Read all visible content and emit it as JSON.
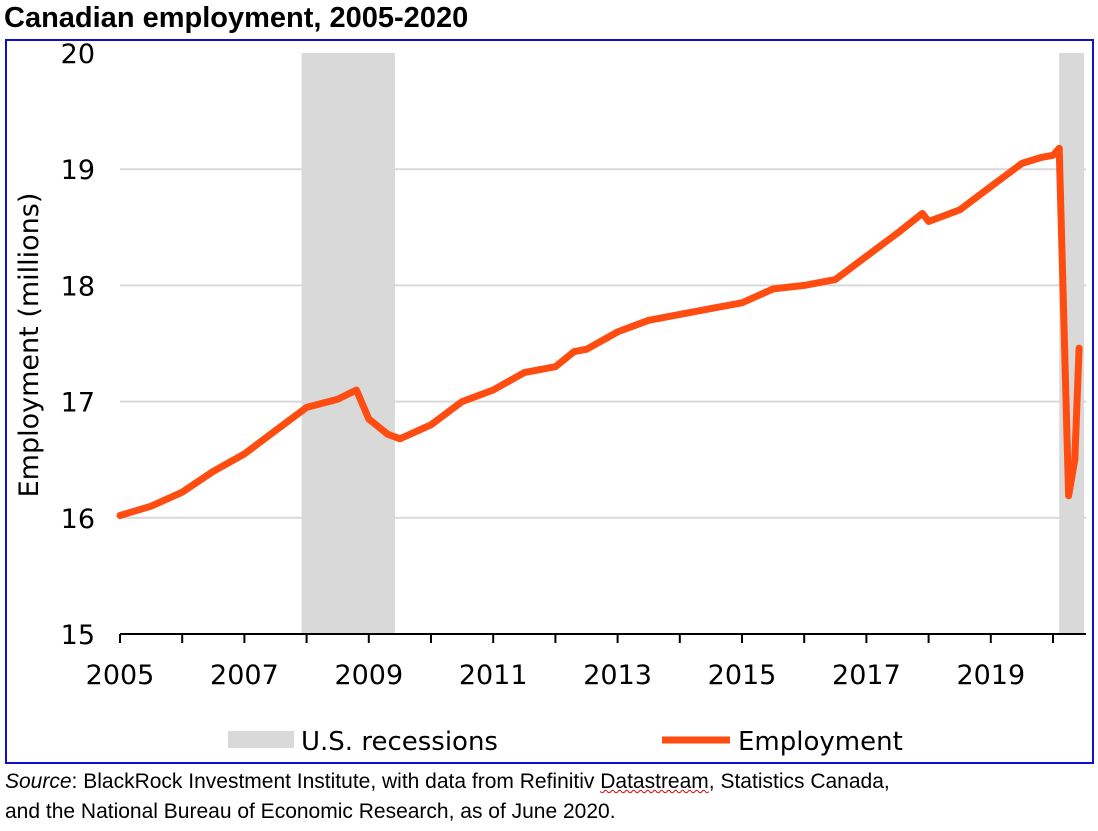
{
  "title": "Canadian employment, 2005-2020",
  "source": {
    "label": "Source",
    "text": ": BlackRock Investment Institute, with data from Refinitiv ",
    "underlined": "Datastream",
    "text2": ", Statistics Canada,",
    "line2": "and the National Bureau of Economic Research, as of June 2020."
  },
  "colors": {
    "line": "#ff4d12",
    "recession": "#d9d9d9",
    "grid": "#d9d9d9",
    "frame": "#1010d0"
  },
  "chart_data": {
    "type": "line",
    "title": "Canadian employment, 2005-2020",
    "ylabel": "Employment (millions)",
    "xlabel": "",
    "ylim": [
      15,
      20
    ],
    "xlim": [
      2005,
      2020.5
    ],
    "yticks": [
      "15",
      "16",
      "17",
      "18",
      "19",
      "20"
    ],
    "xticks": [
      "2005",
      "2007",
      "2009",
      "2011",
      "2013",
      "2015",
      "2017",
      "2019"
    ],
    "grid": true,
    "legend": {
      "placement": "bottom",
      "entries": [
        "U.S. recessions",
        "Employment"
      ]
    },
    "recessions": [
      [
        2007.92,
        2009.42
      ],
      [
        2020.1,
        2020.5
      ]
    ],
    "series": [
      {
        "name": "Employment",
        "x": [
          2005.0,
          2005.5,
          2006.0,
          2006.5,
          2007.0,
          2007.5,
          2008.0,
          2008.5,
          2008.8,
          2009.0,
          2009.3,
          2009.5,
          2010.0,
          2010.5,
          2011.0,
          2011.5,
          2012.0,
          2012.3,
          2012.5,
          2013.0,
          2013.5,
          2014.0,
          2014.5,
          2015.0,
          2015.5,
          2016.0,
          2016.5,
          2017.0,
          2017.5,
          2017.9,
          2018.0,
          2018.5,
          2019.0,
          2019.5,
          2019.8,
          2020.0,
          2020.1,
          2020.25,
          2020.35,
          2020.42
        ],
        "values": [
          16.02,
          16.1,
          16.22,
          16.4,
          16.55,
          16.75,
          16.95,
          17.02,
          17.1,
          16.85,
          16.72,
          16.68,
          16.8,
          17.0,
          17.1,
          17.25,
          17.3,
          17.43,
          17.45,
          17.6,
          17.7,
          17.75,
          17.8,
          17.85,
          17.97,
          18.0,
          18.05,
          18.25,
          18.45,
          18.62,
          18.55,
          18.65,
          18.85,
          19.05,
          19.1,
          19.12,
          19.18,
          16.19,
          16.5,
          17.46
        ]
      }
    ]
  }
}
